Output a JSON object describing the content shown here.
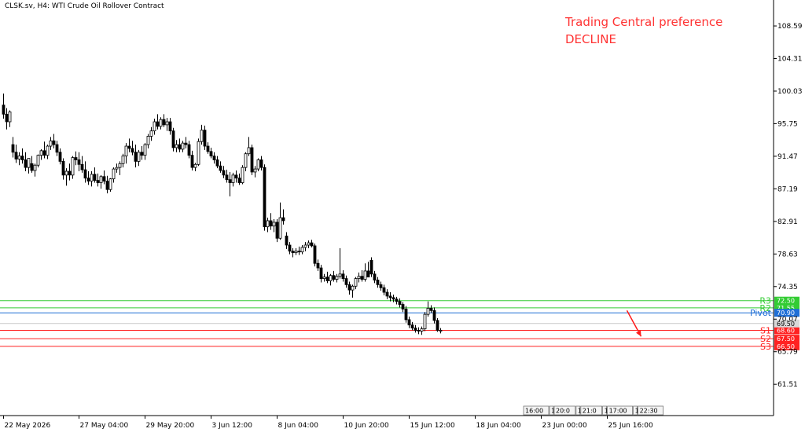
{
  "header": {
    "symbol_label": "CLSK.sv, H4:  WTI Crude Oil Rollover Contract",
    "preference_title": "Trading Central preference",
    "preference_value": "DECLINE"
  },
  "colors": {
    "bullish": "#ffffff",
    "bearish": "#000000",
    "resistance": "#33cc33",
    "pivot": "#1f6fd6",
    "support": "#ff2222",
    "arrow": "#ff1a1a",
    "grid": "#cccccc"
  },
  "chart_data": {
    "type": "candlestick",
    "title": "",
    "ylim": [
      57.4,
      112.0
    ],
    "y_ticks": [
      {
        "value": 108.59,
        "label": "108.59"
      },
      {
        "value": 104.31,
        "label": "104.31"
      },
      {
        "value": 100.03,
        "label": "100.03"
      },
      {
        "value": 95.75,
        "label": "95.75"
      },
      {
        "value": 91.47,
        "label": "91.47"
      },
      {
        "value": 87.19,
        "label": "87.19"
      },
      {
        "value": 82.91,
        "label": "82.91"
      },
      {
        "value": 78.63,
        "label": "78.63"
      },
      {
        "value": 74.35,
        "label": "74.35"
      },
      {
        "value": 70.07,
        "label": "70.07"
      },
      {
        "value": 65.79,
        "label": "65.79"
      },
      {
        "value": 61.51,
        "label": "61.51"
      }
    ],
    "x_ticks": [
      {
        "index": 0,
        "label": "22 May 2026"
      },
      {
        "index": 24,
        "label": "27 May 04:00"
      },
      {
        "index": 45,
        "label": "29 May 20:00"
      },
      {
        "index": 66,
        "label": "3 Jun 12:00"
      },
      {
        "index": 87,
        "label": "8 Jun 04:00"
      },
      {
        "index": 108,
        "label": "10 Jun 20:00"
      },
      {
        "index": 129,
        "label": "15 Jun 12:00"
      },
      {
        "index": 150,
        "label": "18 Jun 04:00"
      },
      {
        "index": 171,
        "label": "23 Jun 00:00"
      },
      {
        "index": 192,
        "label": "25 Jun 16:00"
      }
    ],
    "future_labels": [
      "16:00",
      "1",
      "20:0",
      "1",
      "21:0",
      "1",
      "17:00",
      "1",
      "22:30"
    ],
    "levels": [
      {
        "name": "R3",
        "value": 72.5,
        "label": "72.50",
        "kind": "resistance"
      },
      {
        "name": "R2",
        "value": 71.55,
        "label": "71.55",
        "kind": "resistance"
      },
      {
        "name": "Pivot",
        "value": 70.9,
        "label": "70.90",
        "kind": "pivot"
      },
      {
        "name": "S1",
        "value": 68.6,
        "label": "68.60",
        "kind": "support"
      },
      {
        "name": "S2",
        "value": 67.5,
        "label": "67.50",
        "kind": "support"
      },
      {
        "name": "S3",
        "value": 66.5,
        "label": "66.50",
        "kind": "support"
      }
    ],
    "current_price": {
      "value": 69.5,
      "label": "69.50"
    },
    "projection": {
      "from_index": 197,
      "from_value": 71.2,
      "to_index": 201,
      "to_value": 67.8
    },
    "ohlc": [
      [
        98.2,
        99.7,
        96.4,
        97.0
      ],
      [
        97.0,
        97.8,
        95.0,
        96.0
      ],
      [
        96.0,
        97.5,
        95.3,
        97.3
      ],
      [
        93.0,
        94.0,
        91.3,
        92.0
      ],
      [
        92.0,
        93.0,
        90.6,
        91.1
      ],
      [
        91.1,
        92.0,
        90.3,
        91.5
      ],
      [
        91.5,
        92.5,
        90.5,
        91.0
      ],
      [
        91.0,
        92.0,
        89.5,
        90.0
      ],
      [
        90.0,
        91.0,
        89.2,
        91.2
      ],
      [
        90.5,
        91.5,
        89.3,
        89.6
      ],
      [
        89.6,
        90.5,
        88.8,
        90.3
      ],
      [
        90.3,
        91.7,
        90.0,
        91.6
      ],
      [
        91.6,
        92.4,
        91.0,
        92.2
      ],
      [
        92.2,
        93.4,
        91.2,
        91.6
      ],
      [
        91.6,
        93.0,
        91.1,
        92.8
      ],
      [
        92.8,
        94.0,
        92.3,
        93.5
      ],
      [
        93.5,
        94.4,
        92.5,
        93.0
      ],
      [
        93.0,
        93.5,
        91.5,
        92.0
      ],
      [
        92.0,
        92.5,
        90.4,
        90.8
      ],
      [
        90.8,
        91.2,
        88.4,
        89.0
      ],
      [
        89.0,
        89.9,
        87.6,
        89.5
      ],
      [
        89.5,
        90.5,
        88.3,
        89.0
      ],
      [
        89.0,
        91.5,
        88.5,
        91.3
      ],
      [
        91.3,
        92.1,
        90.3,
        91.0
      ],
      [
        91.0,
        92.0,
        89.5,
        90.4
      ],
      [
        90.4,
        91.5,
        89.3,
        89.7
      ],
      [
        89.7,
        90.8,
        88.0,
        88.6
      ],
      [
        88.6,
        89.5,
        87.7,
        88.2
      ],
      [
        88.2,
        89.5,
        87.5,
        89.1
      ],
      [
        89.1,
        90.0,
        88.0,
        88.3
      ],
      [
        88.3,
        89.2,
        87.5,
        88.0
      ],
      [
        88.0,
        89.0,
        87.2,
        88.8
      ],
      [
        88.8,
        89.6,
        87.8,
        88.2
      ],
      [
        88.2,
        88.9,
        86.6,
        87.1
      ],
      [
        87.1,
        88.6,
        86.8,
        88.5
      ],
      [
        88.5,
        90.0,
        88.0,
        89.8
      ],
      [
        89.8,
        90.5,
        89.3,
        90.0
      ],
      [
        90.0,
        90.8,
        89.0,
        90.5
      ],
      [
        90.5,
        91.8,
        90.0,
        91.5
      ],
      [
        91.5,
        93.2,
        90.5,
        92.8
      ],
      [
        92.8,
        93.8,
        92.0,
        92.5
      ],
      [
        92.5,
        93.5,
        91.6,
        92.0
      ],
      [
        92.0,
        93.0,
        90.0,
        90.8
      ],
      [
        90.8,
        92.3,
        90.2,
        92.0
      ],
      [
        92.0,
        92.8,
        91.0,
        91.6
      ],
      [
        91.6,
        93.2,
        91.0,
        93.0
      ],
      [
        93.0,
        94.4,
        92.5,
        94.1
      ],
      [
        94.1,
        95.3,
        93.5,
        94.8
      ],
      [
        94.8,
        96.4,
        94.3,
        96.0
      ],
      [
        96.0,
        97.0,
        95.0,
        95.4
      ],
      [
        95.4,
        96.6,
        95.0,
        96.3
      ],
      [
        96.3,
        97.0,
        95.3,
        95.6
      ],
      [
        95.6,
        96.5,
        94.8,
        96.0
      ],
      [
        96.0,
        96.5,
        94.3,
        94.8
      ],
      [
        94.8,
        95.2,
        92.1,
        92.6
      ],
      [
        92.6,
        93.6,
        92.0,
        93.0
      ],
      [
        93.0,
        93.8,
        92.0,
        92.4
      ],
      [
        92.4,
        93.5,
        92.0,
        93.2
      ],
      [
        93.2,
        94.0,
        92.5,
        93.0
      ],
      [
        93.0,
        93.5,
        91.2,
        91.6
      ],
      [
        91.6,
        92.2,
        89.6,
        90.0
      ],
      [
        90.0,
        90.6,
        89.5,
        90.4
      ],
      [
        90.4,
        93.8,
        90.2,
        93.4
      ],
      [
        93.4,
        95.6,
        93.0,
        94.9
      ],
      [
        94.9,
        95.5,
        92.3,
        92.8
      ],
      [
        92.8,
        93.3,
        91.8,
        92.1
      ],
      [
        92.1,
        92.6,
        91.2,
        91.5
      ],
      [
        91.5,
        92.0,
        90.5,
        91.0
      ],
      [
        91.0,
        91.5,
        89.9,
        90.2
      ],
      [
        90.2,
        90.8,
        89.3,
        89.6
      ],
      [
        89.6,
        90.2,
        88.6,
        89.0
      ],
      [
        89.0,
        89.7,
        88.0,
        88.4
      ],
      [
        88.4,
        89.4,
        86.2,
        88.0
      ],
      [
        88.0,
        89.3,
        87.5,
        89.0
      ],
      [
        89.0,
        89.6,
        88.0,
        88.6
      ],
      [
        88.6,
        89.2,
        87.7,
        88.0
      ],
      [
        88.0,
        90.3,
        87.8,
        90.0
      ],
      [
        90.0,
        92.0,
        89.5,
        91.8
      ],
      [
        91.8,
        94.0,
        91.5,
        92.6
      ],
      [
        92.6,
        93.0,
        89.0,
        89.4
      ],
      [
        89.4,
        90.2,
        88.7,
        89.8
      ],
      [
        89.8,
        91.2,
        89.5,
        91.0
      ],
      [
        91.0,
        91.5,
        89.6,
        90.0
      ],
      [
        90.0,
        90.4,
        81.7,
        82.2
      ],
      [
        82.2,
        83.4,
        81.5,
        83.0
      ],
      [
        83.0,
        84.0,
        81.8,
        82.3
      ],
      [
        82.3,
        83.2,
        81.5,
        82.8
      ],
      [
        82.8,
        83.2,
        80.2,
        80.7
      ],
      [
        80.7,
        85.4,
        80.5,
        83.4
      ],
      [
        83.4,
        84.5,
        82.5,
        83.0
      ],
      [
        81.0,
        81.5,
        79.3,
        79.8
      ],
      [
        79.8,
        80.2,
        78.6,
        79.0
      ],
      [
        79.0,
        79.4,
        78.2,
        78.8
      ],
      [
        78.8,
        79.4,
        78.5,
        79.0
      ],
      [
        79.0,
        79.6,
        78.5,
        78.9
      ],
      [
        78.9,
        79.8,
        78.6,
        79.5
      ],
      [
        79.5,
        80.2,
        79.0,
        79.8
      ],
      [
        79.8,
        80.4,
        79.4,
        80.1
      ],
      [
        80.1,
        80.5,
        79.5,
        79.7
      ],
      [
        79.7,
        80.0,
        77.0,
        77.4
      ],
      [
        77.4,
        77.9,
        76.4,
        76.8
      ],
      [
        76.8,
        77.2,
        74.9,
        75.4
      ],
      [
        75.4,
        76.0,
        75.0,
        75.6
      ],
      [
        75.6,
        76.3,
        74.8,
        75.1
      ],
      [
        75.1,
        76.0,
        74.5,
        75.8
      ],
      [
        75.8,
        76.4,
        75.0,
        75.3
      ],
      [
        75.3,
        76.0,
        74.9,
        75.7
      ],
      [
        75.7,
        79.4,
        75.4,
        76.0
      ],
      [
        76.0,
        76.5,
        75.0,
        75.4
      ],
      [
        75.4,
        75.8,
        74.2,
        74.6
      ],
      [
        74.6,
        75.0,
        73.3,
        73.9
      ],
      [
        73.9,
        74.6,
        72.9,
        74.4
      ],
      [
        74.4,
        75.6,
        74.0,
        75.4
      ],
      [
        75.4,
        76.2,
        74.9,
        75.7
      ],
      [
        75.7,
        76.5,
        75.0,
        75.3
      ],
      [
        75.3,
        77.4,
        75.0,
        76.4
      ],
      [
        76.4,
        77.6,
        76.0,
        75.6
      ],
      [
        77.8,
        78.2,
        75.6,
        76.0
      ],
      [
        76.0,
        76.4,
        74.8,
        75.2
      ],
      [
        75.2,
        75.6,
        74.2,
        74.6
      ],
      [
        74.6,
        75.0,
        73.8,
        74.2
      ],
      [
        74.2,
        74.6,
        73.2,
        73.6
      ],
      [
        73.6,
        74.0,
        72.7,
        73.1
      ],
      [
        73.1,
        73.6,
        72.4,
        72.9
      ],
      [
        72.9,
        73.3,
        72.3,
        72.7
      ],
      [
        72.7,
        73.0,
        72.0,
        72.4
      ],
      [
        72.4,
        72.8,
        71.6,
        72.0
      ],
      [
        72.0,
        72.3,
        71.0,
        71.4
      ],
      [
        71.4,
        71.8,
        69.6,
        70.0
      ],
      [
        70.0,
        70.4,
        68.9,
        69.3
      ],
      [
        69.3,
        69.7,
        68.6,
        68.9
      ],
      [
        68.9,
        69.3,
        68.3,
        68.6
      ],
      [
        68.6,
        69.0,
        68.1,
        68.5
      ],
      [
        68.5,
        69.1,
        68.0,
        68.8
      ],
      [
        68.8,
        71.0,
        68.5,
        70.7
      ],
      [
        70.7,
        72.4,
        70.4,
        71.5
      ],
      [
        71.5,
        71.9,
        70.9,
        71.2
      ],
      [
        71.2,
        71.6,
        69.5,
        69.9
      ],
      [
        69.9,
        70.2,
        68.4,
        68.6
      ],
      [
        68.6,
        68.9,
        68.2,
        68.6
      ]
    ]
  }
}
